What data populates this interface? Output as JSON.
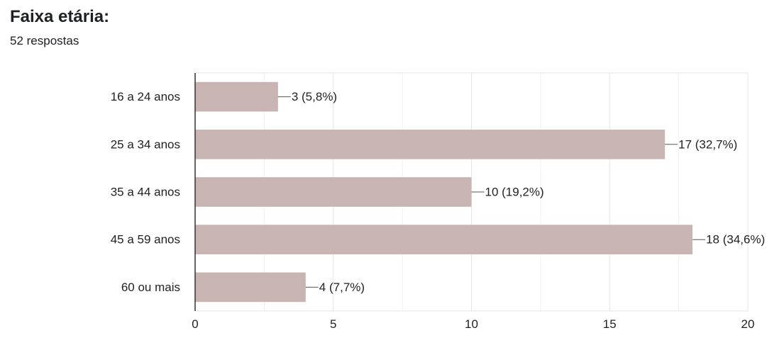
{
  "chart_data": {
    "type": "bar",
    "orientation": "horizontal",
    "title": "Faixa etária:",
    "subtitle": "52 respostas",
    "categories": [
      "16 a 24 anos",
      "25 a 34 anos",
      "35 a 44 anos",
      "45 a 59 anos",
      "60 ou mais"
    ],
    "values": [
      3,
      17,
      10,
      18,
      4
    ],
    "value_labels": [
      "3 (5,8%)",
      "17 (32,7%)",
      "10 (19,2%)",
      "18 (34,6%)",
      "4 (7,7%)"
    ],
    "xlim": [
      0,
      20
    ],
    "xticks": [
      0,
      5,
      10,
      15,
      20
    ],
    "grid": true,
    "bar_color": "#c8b4b3",
    "gridline_color": "#e6e6e6",
    "axis_color": "#333333"
  }
}
